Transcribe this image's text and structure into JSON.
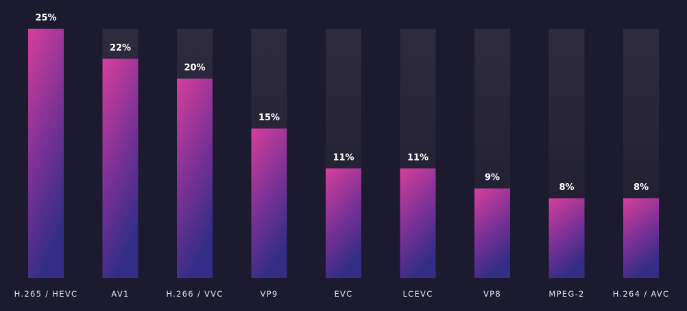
{
  "colors": {
    "background": "#1c1a2e",
    "bar_top": "#d63f9c",
    "bar_mid": "#7a3196",
    "bar_bottom": "#332d86",
    "track_top": "#2e2b3e",
    "track_bottom": "#1d1b2f",
    "text": "#ffffff"
  },
  "chart_data": {
    "type": "bar",
    "categories": [
      "H.265 / HEVC",
      "AV1",
      "H.266 / VVC",
      "VP9",
      "EVC",
      "LCEVC",
      "VP8",
      "MPEG-2",
      "H.264 / AVC"
    ],
    "values": [
      25,
      22,
      20,
      15,
      11,
      11,
      9,
      8,
      8
    ],
    "value_labels": [
      "25%",
      "22%",
      "20%",
      "15%",
      "11%",
      "11%",
      "9%",
      "8%",
      "8%"
    ],
    "unit": "%",
    "ylim": [
      0,
      25
    ],
    "grid": false,
    "legend": "none",
    "title": "",
    "xlabel": "",
    "ylabel": ""
  }
}
